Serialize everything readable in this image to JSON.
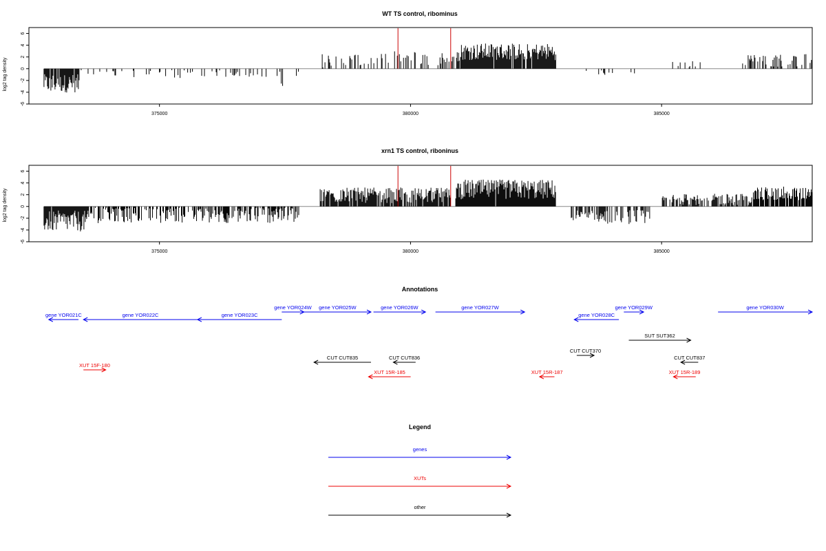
{
  "chart_data": [
    {
      "type": "bar",
      "title": "WT TS control, ribominus",
      "ylabel": "log2 tag density",
      "xlabel": "",
      "xlim": [
        372400,
        388000
      ],
      "ylim": [
        -6,
        7
      ],
      "yticks": [
        "6",
        "4",
        "2",
        "0",
        "-2",
        "-4",
        "-6"
      ],
      "xticks": [
        {
          "value": 375000,
          "label": "375000"
        },
        {
          "value": 380000,
          "label": "380000"
        },
        {
          "value": 385000,
          "label": "385000"
        }
      ],
      "bar_color": "#000000",
      "highlight_color": "#cc0000",
      "highlights": [
        {
          "x": 379750,
          "y": 6.9
        },
        {
          "x": 380800,
          "y": 6.9
        }
      ],
      "segments": [
        {
          "start": 372700,
          "end": 373400,
          "mean": -2.5,
          "amp": 1.3,
          "density": 0.85
        },
        {
          "start": 373400,
          "end": 374300,
          "mean": -0.6,
          "amp": 0.6,
          "density": 0.15
        },
        {
          "start": 374300,
          "end": 375800,
          "mean": -0.8,
          "amp": 0.7,
          "density": 0.2
        },
        {
          "start": 375800,
          "end": 377000,
          "mean": -0.8,
          "amp": 0.5,
          "density": 0.15
        },
        {
          "start": 377000,
          "end": 377800,
          "mean": -1.5,
          "amp": 1.2,
          "density": 0.2
        },
        {
          "start": 378200,
          "end": 379600,
          "mean": 1.4,
          "amp": 1.0,
          "density": 0.3
        },
        {
          "start": 379600,
          "end": 381000,
          "mean": 1.8,
          "amp": 1.0,
          "density": 0.35
        },
        {
          "start": 381000,
          "end": 382900,
          "mean": 2.9,
          "amp": 1.2,
          "density": 0.95
        },
        {
          "start": 383500,
          "end": 384500,
          "mean": -0.7,
          "amp": 0.4,
          "density": 0.1
        },
        {
          "start": 385000,
          "end": 385800,
          "mean": 1.0,
          "amp": 1.0,
          "density": 0.1
        },
        {
          "start": 386600,
          "end": 388000,
          "mean": 1.4,
          "amp": 0.9,
          "density": 0.35
        }
      ]
    },
    {
      "type": "bar",
      "title": "xrn1 TS control, riboninus",
      "ylabel": "log2 tag density",
      "xlabel": "",
      "xlim": [
        372400,
        388000
      ],
      "ylim": [
        -6,
        7
      ],
      "yticks": [
        "6",
        "4",
        "2",
        "0",
        "-2",
        "-4",
        "-6"
      ],
      "xticks": [
        {
          "value": 375000,
          "label": "375000"
        },
        {
          "value": 380000,
          "label": "380000"
        },
        {
          "value": 385000,
          "label": "385000"
        }
      ],
      "bar_color": "#000000",
      "highlight_color": "#cc0000",
      "highlights": [
        {
          "x": 379750,
          "y": 6.9
        },
        {
          "x": 380800,
          "y": 6.9
        }
      ],
      "segments": [
        {
          "start": 372700,
          "end": 373600,
          "mean": -2.5,
          "amp": 1.5,
          "density": 0.95
        },
        {
          "start": 373600,
          "end": 375800,
          "mean": -1.4,
          "amp": 1.2,
          "density": 0.5
        },
        {
          "start": 375800,
          "end": 377800,
          "mean": -1.4,
          "amp": 1.2,
          "density": 0.6
        },
        {
          "start": 378200,
          "end": 380800,
          "mean": 1.9,
          "amp": 1.1,
          "density": 0.85
        },
        {
          "start": 380900,
          "end": 382900,
          "mean": 2.9,
          "amp": 1.4,
          "density": 0.98
        },
        {
          "start": 383200,
          "end": 384800,
          "mean": -1.8,
          "amp": 1.0,
          "density": 0.6
        },
        {
          "start": 385000,
          "end": 386800,
          "mean": 1.2,
          "amp": 0.8,
          "density": 0.6
        },
        {
          "start": 386800,
          "end": 388000,
          "mean": 2.2,
          "amp": 1.0,
          "density": 0.9
        }
      ]
    }
  ],
  "annotations": {
    "title": "Annotations",
    "xlim": [
      372400,
      388200
    ],
    "items": [
      {
        "label": "gene YOR021C",
        "start": 372800,
        "end": 373400,
        "strand": "-",
        "row": 0,
        "color": "#0000ee"
      },
      {
        "label": "gene YOR022C",
        "start": 373500,
        "end": 375800,
        "strand": "-",
        "row": 0,
        "color": "#0000ee"
      },
      {
        "label": "gene YOR023C",
        "start": 375800,
        "end": 377500,
        "strand": "-",
        "row": 0,
        "color": "#0000ee"
      },
      {
        "label": "gene YOR024W",
        "start": 377500,
        "end": 377950,
        "strand": "+",
        "row": 1,
        "color": "#0000ee"
      },
      {
        "label": "gene YOR025W",
        "start": 377950,
        "end": 379300,
        "strand": "+",
        "row": 1,
        "color": "#0000ee"
      },
      {
        "label": "gene YOR026W",
        "start": 379350,
        "end": 380400,
        "strand": "+",
        "row": 1,
        "color": "#0000ee"
      },
      {
        "label": "gene YOR027W",
        "start": 380600,
        "end": 382400,
        "strand": "+",
        "row": 1,
        "color": "#0000ee"
      },
      {
        "label": "gene YOR028C",
        "start": 383400,
        "end": 384300,
        "strand": "-",
        "row": 0,
        "color": "#0000ee"
      },
      {
        "label": "gene YOR029W",
        "start": 384400,
        "end": 384800,
        "strand": "+",
        "row": 1,
        "color": "#0000ee"
      },
      {
        "label": "gene YOR030W",
        "start": 386300,
        "end": 388200,
        "strand": "+",
        "row": 1,
        "color": "#0000ee"
      },
      {
        "label": "SUT SUT362",
        "start": 384500,
        "end": 385750,
        "strand": "+",
        "row": 2,
        "color": "#000000"
      },
      {
        "label": "CUT CUT835",
        "start": 378150,
        "end": 379300,
        "strand": "-",
        "row": 3,
        "color": "#000000"
      },
      {
        "label": "CUT CUT836",
        "start": 379750,
        "end": 380200,
        "strand": "-",
        "row": 3,
        "color": "#000000"
      },
      {
        "label": "CUT CUT370",
        "start": 383450,
        "end": 383800,
        "strand": "+",
        "row": 4,
        "color": "#000000"
      },
      {
        "label": "CUT CUT837",
        "start": 385550,
        "end": 385900,
        "strand": "-",
        "row": 3,
        "color": "#000000"
      },
      {
        "label": "XUT 15F-180",
        "start": 373500,
        "end": 373950,
        "strand": "+",
        "row": 5,
        "color": "#ee0000"
      },
      {
        "label": "XUT 15R-185",
        "start": 379250,
        "end": 380100,
        "strand": "-",
        "row": 6,
        "color": "#ee0000"
      },
      {
        "label": "XUT 15R-187",
        "start": 382700,
        "end": 383000,
        "strand": "-",
        "row": 6,
        "color": "#ee0000"
      },
      {
        "label": "XUT 15R-189",
        "start": 385400,
        "end": 385850,
        "strand": "-",
        "row": 6,
        "color": "#ee0000"
      }
    ]
  },
  "legend": {
    "title": "Legend",
    "items": [
      {
        "label": "genes",
        "color": "#0000ee"
      },
      {
        "label": "XUTs",
        "color": "#ee0000"
      },
      {
        "label": "other",
        "color": "#000000"
      }
    ]
  }
}
